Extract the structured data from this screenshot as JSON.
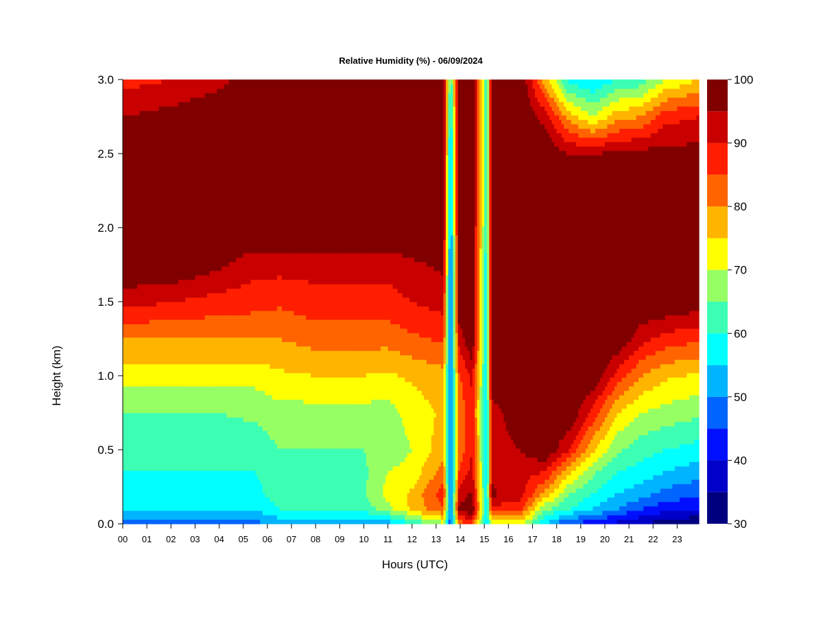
{
  "chart_data": {
    "type": "heatmap",
    "title": "Relative Humidity (%) - 06/09/2024",
    "xlabel": "Hours (UTC)",
    "ylabel": "Height (km)",
    "xlim": [
      0,
      23.9
    ],
    "ylim": [
      0,
      3.0
    ],
    "x_ticks": [
      "00",
      "01",
      "02",
      "03",
      "04",
      "05",
      "06",
      "07",
      "08",
      "09",
      "10",
      "11",
      "12",
      "13",
      "14",
      "15",
      "16",
      "17",
      "18",
      "19",
      "20",
      "21",
      "22",
      "23"
    ],
    "y_ticks": [
      "0.0",
      "0.5",
      "1.0",
      "1.5",
      "2.0",
      "2.5",
      "3.0"
    ],
    "y_tick_values": [
      0,
      0.5,
      1.0,
      1.5,
      2.0,
      2.5,
      3.0
    ],
    "colorbar": {
      "min": 30,
      "max": 100,
      "tick_values": [
        30,
        40,
        50,
        60,
        70,
        80,
        90,
        100
      ],
      "tick_labels": [
        "30",
        "40",
        "50",
        "60",
        "70",
        "80",
        "90",
        "100"
      ],
      "levels": [
        30,
        35,
        40,
        45,
        50,
        55,
        60,
        65,
        70,
        75,
        80,
        85,
        90,
        95,
        100
      ],
      "colors": [
        "#00007f",
        "#0000c8",
        "#0010ff",
        "#0064ff",
        "#00b4ff",
        "#00ffff",
        "#3cffb4",
        "#96ff64",
        "#ffff00",
        "#ffb400",
        "#ff6400",
        "#ff1e00",
        "#c80000",
        "#800000"
      ]
    },
    "profile_heights_km": [
      0,
      0.1,
      0.2,
      0.35,
      0.5,
      0.75,
      1.0,
      1.25,
      1.5,
      1.75,
      2.0,
      2.5,
      2.75,
      3.0
    ],
    "profiles": [
      {
        "hour": 0,
        "rh": [
          48,
          55,
          58,
          60,
          62,
          65,
          72,
          80,
          92,
          100,
          100,
          100,
          95,
          88
        ]
      },
      {
        "hour": 2,
        "rh": [
          48,
          55,
          58,
          60,
          62,
          65,
          72,
          80,
          90,
          100,
          100,
          100,
          97,
          90
        ]
      },
      {
        "hour": 4,
        "rh": [
          48,
          55,
          58,
          60,
          62,
          65,
          72,
          80,
          88,
          96,
          100,
          100,
          100,
          93
        ]
      },
      {
        "hour": 5.5,
        "rh": [
          48,
          56,
          58,
          60,
          62,
          66,
          72,
          80,
          87,
          92,
          100,
          100,
          100,
          100
        ]
      },
      {
        "hour": 6.5,
        "rh": [
          52,
          60,
          63,
          64,
          65,
          68,
          74,
          80,
          86,
          92,
          100,
          100,
          100,
          100
        ]
      },
      {
        "hour": 8,
        "rh": [
          52,
          62,
          64,
          64,
          65,
          68,
          75,
          82,
          88,
          92,
          100,
          100,
          100,
          100
        ]
      },
      {
        "hour": 10,
        "rh": [
          50,
          62,
          64,
          64,
          65,
          68,
          75,
          82,
          88,
          92,
          100,
          100,
          100,
          100
        ]
      },
      {
        "hour": 11,
        "rh": [
          52,
          68,
          72,
          70,
          67,
          68,
          74,
          82,
          88,
          92,
          100,
          100,
          100,
          100
        ]
      },
      {
        "hour": 12,
        "rh": [
          60,
          76,
          76,
          72,
          70,
          72,
          76,
          84,
          90,
          94,
          100,
          100,
          100,
          100
        ]
      },
      {
        "hour": 13.3,
        "rh": [
          68,
          85,
          88,
          82,
          78,
          76,
          78,
          86,
          92,
          96,
          100,
          100,
          100,
          100
        ]
      },
      {
        "hour": 13.6,
        "rh": [
          45,
          45,
          45,
          45,
          45,
          48,
          50,
          48,
          45,
          45,
          48,
          50,
          55,
          60
        ]
      },
      {
        "hour": 13.95,
        "rh": [
          82,
          96,
          92,
          85,
          82,
          82,
          84,
          92,
          100,
          100,
          100,
          100,
          100,
          100
        ]
      },
      {
        "hour": 14.5,
        "rh": [
          85,
          100,
          96,
          92,
          90,
          88,
          92,
          100,
          100,
          100,
          100,
          100,
          100,
          100
        ]
      },
      {
        "hour": 15.1,
        "rh": [
          55,
          55,
          55,
          55,
          55,
          55,
          55,
          55,
          55,
          55,
          60,
          60,
          60,
          60
        ]
      },
      {
        "hour": 15.3,
        "rh": [
          70,
          88,
          96,
          94,
          92,
          92,
          100,
          100,
          100,
          100,
          100,
          100,
          100,
          100
        ]
      },
      {
        "hour": 16.5,
        "rh": [
          72,
          86,
          92,
          92,
          95,
          100,
          100,
          100,
          100,
          100,
          100,
          100,
          100,
          100
        ]
      },
      {
        "hour": 17.5,
        "rh": [
          55,
          66,
          78,
          90,
          100,
          100,
          100,
          100,
          100,
          100,
          100,
          100,
          93,
          78
        ]
      },
      {
        "hour": 18.5,
        "rh": [
          44,
          60,
          65,
          76,
          90,
          100,
          100,
          100,
          100,
          100,
          100,
          95,
          78,
          58
        ]
      },
      {
        "hour": 19.5,
        "rh": [
          42,
          55,
          60,
          66,
          76,
          88,
          100,
          100,
          100,
          100,
          100,
          95,
          70,
          55
        ]
      },
      {
        "hour": 20.5,
        "rh": [
          38,
          50,
          55,
          60,
          66,
          75,
          88,
          100,
          100,
          100,
          100,
          96,
          78,
          60
        ]
      },
      {
        "hour": 21.5,
        "rh": [
          35,
          45,
          52,
          58,
          62,
          70,
          80,
          92,
          100,
          100,
          100,
          97,
          80,
          62
        ]
      },
      {
        "hour": 22.5,
        "rh": [
          32,
          42,
          48,
          55,
          60,
          68,
          76,
          88,
          100,
          100,
          100,
          97,
          88,
          70
        ]
      },
      {
        "hour": 23.9,
        "rh": [
          30,
          40,
          46,
          52,
          58,
          66,
          74,
          86,
          98,
          100,
          100,
          97,
          90,
          75
        ]
      }
    ]
  }
}
